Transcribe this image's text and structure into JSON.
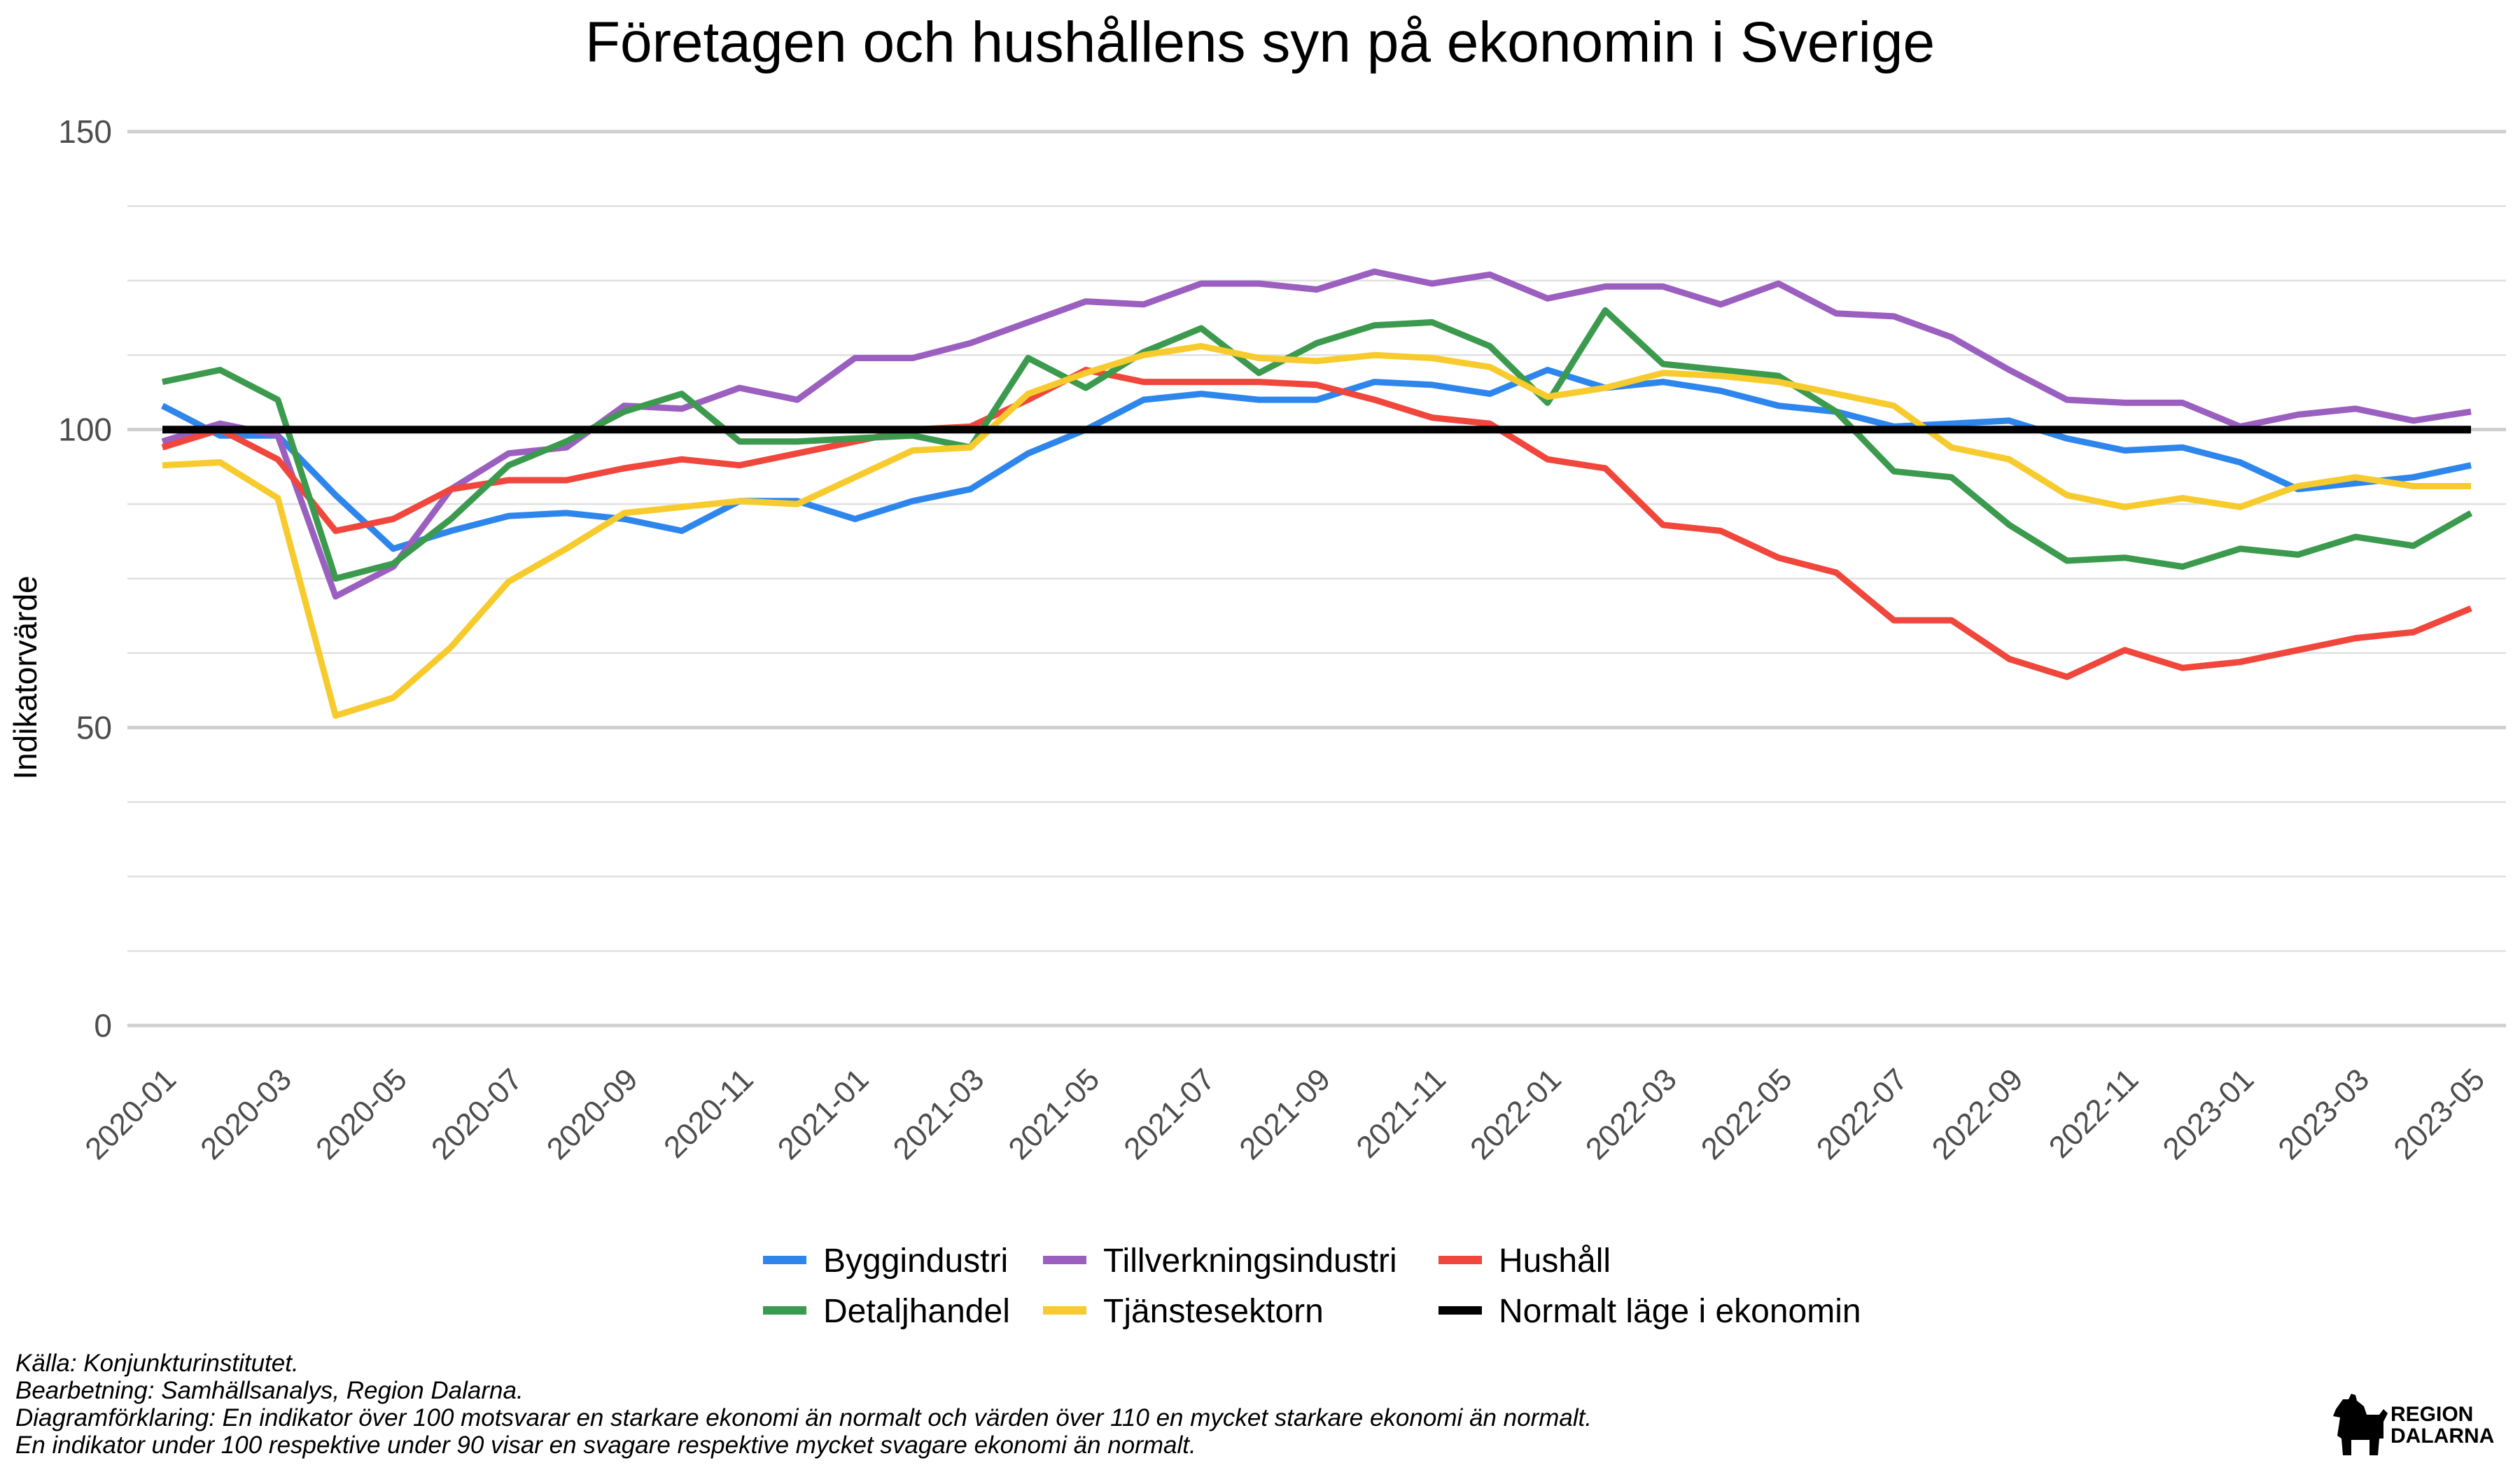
{
  "colors": {
    "Byggindustri": "#2E86EC",
    "Tillverkningsindustri": "#9B5FC0",
    "Hushåll": "#F0463C",
    "Detaljhandel": "#3C9A4E",
    "Tjänstesektorn": "#F7CB2D",
    "Normalt läge i ekonomin": "#000000"
  },
  "chart_data": {
    "type": "line",
    "title": "Företagen och hushållens syn på ekonomin i Sverige",
    "ylabel": "Indikatorvärde",
    "xlabel": "",
    "ylim": [
      0,
      150
    ],
    "yticks": [
      "0",
      "50",
      "100",
      "150"
    ],
    "grid": true,
    "legend_position": "bottom",
    "x": [
      "2020-01",
      "2020-02",
      "2020-03",
      "2020-04",
      "2020-05",
      "2020-06",
      "2020-07",
      "2020-08",
      "2020-09",
      "2020-10",
      "2020-11",
      "2020-12",
      "2021-01",
      "2021-02",
      "2021-03",
      "2021-04",
      "2021-05",
      "2021-06",
      "2021-07",
      "2021-08",
      "2021-09",
      "2021-10",
      "2021-11",
      "2021-12",
      "2022-01",
      "2022-02",
      "2022-03",
      "2022-04",
      "2022-05",
      "2022-06",
      "2022-07",
      "2022-08",
      "2022-09",
      "2022-10",
      "2022-11",
      "2022-12",
      "2023-01",
      "2023-02",
      "2023-03",
      "2023-04",
      "2023-05"
    ],
    "xticks": [
      "2020-01",
      "2020-03",
      "2020-05",
      "2020-07",
      "2020-09",
      "2020-11",
      "2021-01",
      "2021-03",
      "2021-05",
      "2021-07",
      "2021-09",
      "2021-11",
      "2022-01",
      "2022-03",
      "2022-05",
      "2022-07",
      "2022-09",
      "2022-11",
      "2023-01",
      "2023-03",
      "2023-05"
    ],
    "series": [
      {
        "name": "Byggindustri",
        "values": [
          104,
          99,
          99,
          89,
          80,
          83,
          85.5,
          86,
          85,
          83,
          88,
          88,
          85,
          88,
          90,
          96,
          100,
          105,
          106,
          105,
          105,
          108,
          107.5,
          106,
          110,
          107,
          108,
          106.5,
          104,
          103,
          100.5,
          101,
          101.5,
          98.5,
          96.5,
          97,
          94.5,
          90,
          91,
          92,
          94
        ]
      },
      {
        "name": "Tillverkningsindustri",
        "values": [
          98,
          101,
          99,
          72,
          77,
          90,
          96,
          97,
          104,
          103.5,
          107,
          105,
          112,
          112,
          114.5,
          118,
          121.5,
          121,
          124.5,
          124.5,
          123.5,
          126.5,
          124.5,
          126,
          122,
          124,
          124,
          121,
          124.5,
          119.5,
          119,
          115.5,
          110,
          105,
          104.5,
          104.5,
          100.5,
          102.5,
          103.5,
          101.5,
          103
        ]
      },
      {
        "name": "Hushåll",
        "values": [
          97,
          100,
          95,
          83,
          85,
          90,
          91.5,
          91.5,
          93.5,
          95,
          94,
          96,
          98,
          100,
          100.5,
          105,
          110,
          108,
          108,
          108,
          107.5,
          105,
          102,
          101,
          95,
          93.5,
          84,
          83,
          78.5,
          76,
          68,
          68,
          61.5,
          58.5,
          63,
          60,
          61,
          63,
          65,
          66,
          70
        ]
      },
      {
        "name": "Detaljhandel",
        "values": [
          108,
          110,
          105,
          75,
          77.5,
          85,
          94,
          98,
          103,
          106,
          98,
          98,
          98.5,
          99,
          97,
          112,
          107,
          113,
          117,
          109.5,
          114.5,
          117.5,
          118,
          114,
          104.5,
          120,
          111,
          110,
          109,
          103,
          93,
          92,
          84,
          78,
          78.5,
          77,
          80,
          79,
          82,
          80.5,
          86
        ]
      },
      {
        "name": "Tjänstesektorn",
        "values": [
          94,
          94.5,
          88.5,
          52,
          55,
          63.5,
          74.5,
          80,
          86,
          87,
          88,
          87.5,
          92,
          96.5,
          97,
          106,
          109.5,
          112.5,
          114,
          112,
          111.5,
          112.5,
          112,
          110.5,
          105.5,
          107,
          109.5,
          109,
          108,
          106,
          104,
          97,
          95,
          89,
          87,
          88.5,
          87,
          90.5,
          92,
          90.5,
          90.5
        ]
      },
      {
        "name": "Normalt läge i ekonomin",
        "values": [
          100,
          100,
          100,
          100,
          100,
          100,
          100,
          100,
          100,
          100,
          100,
          100,
          100,
          100,
          100,
          100,
          100,
          100,
          100,
          100,
          100,
          100,
          100,
          100,
          100,
          100,
          100,
          100,
          100,
          100,
          100,
          100,
          100,
          100,
          100,
          100,
          100,
          100,
          100,
          100,
          100
        ]
      }
    ],
    "legend_rows": [
      [
        "Byggindustri",
        "Tillverkningsindustri",
        "Hushåll"
      ],
      [
        "Detaljhandel",
        "Tjänstesektorn",
        "Normalt läge i ekonomin"
      ]
    ]
  },
  "captions": [
    "Källa: Konjunkturinstitutet.",
    "Bearbetning: Samhällsanalys, Region Dalarna.",
    "Diagramförklaring: En indikator över 100 motsvarar en starkare ekonomi än normalt och värden över 110 en mycket starkare ekonomi än normalt.",
    "En indikator under 100 respektive under 90 visar en svagare respektive mycket svagare ekonomi än normalt."
  ],
  "logo": {
    "line1": "REGION",
    "line2": "DALARNA",
    "icon": "dala-horse-icon"
  }
}
